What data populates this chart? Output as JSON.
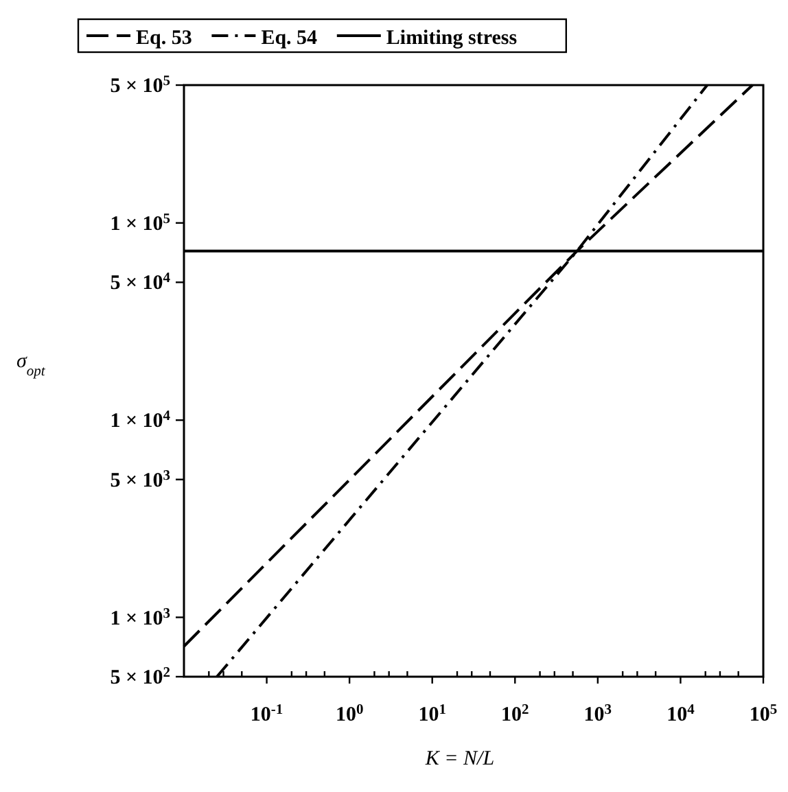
{
  "chart_data": {
    "type": "line",
    "xlabel": "K = N/L",
    "ylabel": "σ$_{opt}$",
    "log": "xy",
    "legend": "top",
    "grid": false,
    "xlim": [
      0.01,
      100000
    ],
    "ylim": [
      500,
      500000
    ],
    "xticks": [
      {
        "value": 0.1,
        "label": "10$^{-1}$"
      },
      {
        "value": 1,
        "label": "10$^{0}$"
      },
      {
        "value": 10,
        "label": "10$^{1}$"
      },
      {
        "value": 100,
        "label": "10$^{2}$"
      },
      {
        "value": 1000,
        "label": "10$^{3}$"
      },
      {
        "value": 10000,
        "label": "10$^{4}$"
      },
      {
        "value": 100000,
        "label": "10$^{5}$"
      },
      {
        "value": 0.02,
        "label": null
      },
      {
        "value": 0.03,
        "label": null
      },
      {
        "value": 0.05,
        "label": null
      },
      {
        "value": 0.2,
        "label": null
      },
      {
        "value": 0.3,
        "label": null
      },
      {
        "value": 0.5,
        "label": null
      },
      {
        "value": 2,
        "label": null
      },
      {
        "value": 3,
        "label": null
      },
      {
        "value": 5,
        "label": null
      },
      {
        "value": 20,
        "label": null
      },
      {
        "value": 30,
        "label": null
      },
      {
        "value": 50,
        "label": null
      },
      {
        "value": 200,
        "label": null
      },
      {
        "value": 300,
        "label": null
      },
      {
        "value": 500,
        "label": null
      },
      {
        "value": 2000,
        "label": null
      },
      {
        "value": 3000,
        "label": null
      },
      {
        "value": 5000,
        "label": null
      },
      {
        "value": 20000,
        "label": null
      },
      {
        "value": 30000,
        "label": null
      },
      {
        "value": 50000,
        "label": null
      }
    ],
    "yticks": [
      {
        "value": 500,
        "label": "5 × 10$^{2}$"
      },
      {
        "value": 1000,
        "label": "1 × 10$^{3}$"
      },
      {
        "value": 5000,
        "label": "5 × 10$^{3}$"
      },
      {
        "value": 10000,
        "label": "1 × 10$^{4}$"
      },
      {
        "value": 50000,
        "label": "5 × 10$^{4}$"
      },
      {
        "value": 100000,
        "label": "1 × 10$^{5}$"
      },
      {
        "value": 500000,
        "label": "5 × 10$^{5}$"
      }
    ],
    "series": [
      {
        "name": "Eq. 53",
        "color": "#000000",
        "line_style": "dashed",
        "x": [
          0.01,
          560,
          74000
        ],
        "values": [
          713,
          72000,
          500000
        ]
      },
      {
        "name": "Eq. 54",
        "color": "#000000",
        "line_style": "dashdot",
        "x": [
          0.025,
          560,
          21000
        ],
        "values": [
          500,
          72000,
          500000
        ]
      },
      {
        "name": "Limiting stress",
        "color": "#000000",
        "line_style": "solid",
        "x": [
          0.01,
          100000
        ],
        "values": [
          72000,
          72000
        ]
      }
    ]
  }
}
